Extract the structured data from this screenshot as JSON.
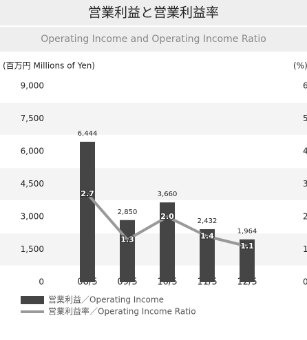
{
  "chart_data": {
    "type": "bar",
    "title": "営業利益と営業利益率",
    "subtitle": "Operating Income and Operating Income Ratio",
    "y_label": "(百万円 Millions of Yen)",
    "y2_label": "(%)",
    "categories": [
      "08/5",
      "09/5",
      "10/5",
      "11/5",
      "12/5"
    ],
    "series": [
      {
        "name": "営業利益／Operating Income",
        "type": "bar",
        "color": "#454545",
        "values": [
          6444,
          2850,
          3660,
          2432,
          1964
        ],
        "value_labels": [
          "6,444",
          "2,850",
          "3,660",
          "2,432",
          "1,964"
        ]
      },
      {
        "name": "営業利益率／Operating Income Ratio",
        "type": "line",
        "axis": "y2",
        "color": "#999999",
        "values": [
          2.7,
          1.3,
          2.0,
          1.4,
          1.1
        ],
        "value_labels": [
          "2.7",
          "1.3",
          "2.0",
          "1.4",
          "1.1"
        ]
      }
    ],
    "ylim": [
      0,
      9000
    ],
    "yticks": [
      0,
      {
        "value": 1500,
        "label": "1,500"
      },
      {
        "value": 3000,
        "label": "3,000"
      },
      {
        "value": 4500,
        "label": "4,500"
      },
      {
        "value": 6000,
        "label": "6,000"
      },
      {
        "value": 7500,
        "label": "7,500"
      },
      {
        "value": 9000,
        "label": "9,000"
      }
    ],
    "y2lim": [
      0,
      6
    ],
    "y2ticks": [
      0,
      1,
      2,
      3,
      4,
      5,
      6
    ]
  }
}
